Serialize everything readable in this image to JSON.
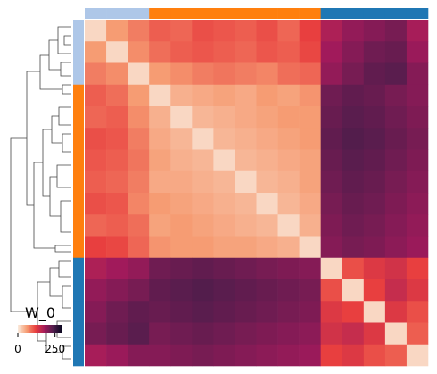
{
  "chart_data": {
    "type": "clustermap",
    "title": "W_0",
    "colormap": "rocket_r",
    "clim": [
      0,
      300
    ],
    "cticks": [
      0,
      250
    ],
    "row_colors": [
      "#aec7e8",
      "#aec7e8",
      "#aec7e8",
      "#ff7f0e",
      "#ff7f0e",
      "#ff7f0e",
      "#ff7f0e",
      "#ff7f0e",
      "#ff7f0e",
      "#ff7f0e",
      "#ff7f0e",
      "#1f77b4",
      "#1f77b4",
      "#1f77b4",
      "#1f77b4",
      "#1f77b4"
    ],
    "col_colors": [
      "#aec7e8",
      "#aec7e8",
      "#aec7e8",
      "#ff7f0e",
      "#ff7f0e",
      "#ff7f0e",
      "#ff7f0e",
      "#ff7f0e",
      "#ff7f0e",
      "#ff7f0e",
      "#ff7f0e",
      "#1f77b4",
      "#1f77b4",
      "#1f77b4",
      "#1f77b4",
      "#1f77b4"
    ],
    "matrix": [
      [
        15,
        60,
        80,
        100,
        95,
        110,
        105,
        100,
        110,
        95,
        120,
        170,
        190,
        200,
        210,
        175
      ],
      [
        60,
        15,
        70,
        90,
        100,
        105,
        100,
        95,
        105,
        100,
        115,
        180,
        200,
        215,
        220,
        185
      ],
      [
        80,
        70,
        15,
        60,
        70,
        80,
        85,
        80,
        75,
        90,
        95,
        190,
        210,
        225,
        230,
        200
      ],
      [
        100,
        90,
        60,
        15,
        45,
        50,
        55,
        50,
        60,
        55,
        65,
        215,
        225,
        220,
        210,
        200
      ],
      [
        95,
        100,
        70,
        45,
        15,
        40,
        45,
        50,
        55,
        60,
        60,
        220,
        230,
        225,
        215,
        205
      ],
      [
        110,
        105,
        80,
        50,
        40,
        15,
        40,
        45,
        50,
        55,
        60,
        225,
        235,
        230,
        220,
        210
      ],
      [
        105,
        100,
        85,
        55,
        45,
        40,
        15,
        40,
        45,
        50,
        55,
        220,
        230,
        225,
        215,
        205
      ],
      [
        100,
        95,
        80,
        50,
        50,
        45,
        40,
        15,
        40,
        45,
        55,
        215,
        225,
        220,
        210,
        200
      ],
      [
        110,
        105,
        75,
        60,
        55,
        50,
        45,
        40,
        15,
        40,
        50,
        210,
        220,
        215,
        205,
        195
      ],
      [
        95,
        100,
        90,
        55,
        60,
        55,
        50,
        45,
        40,
        15,
        45,
        205,
        215,
        210,
        200,
        190
      ],
      [
        120,
        115,
        95,
        65,
        60,
        60,
        55,
        55,
        50,
        45,
        15,
        200,
        210,
        205,
        195,
        185
      ],
      [
        170,
        180,
        190,
        215,
        220,
        225,
        220,
        215,
        210,
        205,
        200,
        15,
        110,
        130,
        140,
        120
      ],
      [
        190,
        200,
        210,
        225,
        230,
        235,
        230,
        225,
        220,
        215,
        210,
        110,
        15,
        120,
        150,
        130
      ],
      [
        200,
        215,
        225,
        220,
        225,
        230,
        225,
        220,
        215,
        210,
        205,
        130,
        120,
        15,
        130,
        110
      ],
      [
        210,
        220,
        230,
        210,
        215,
        220,
        215,
        210,
        205,
        200,
        195,
        140,
        150,
        130,
        15,
        100
      ],
      [
        175,
        185,
        200,
        200,
        205,
        210,
        205,
        200,
        195,
        190,
        185,
        120,
        130,
        110,
        100,
        15
      ]
    ]
  }
}
